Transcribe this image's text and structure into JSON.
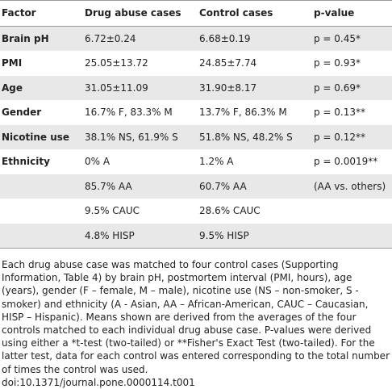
{
  "table": {
    "header": [
      "Factor",
      "Drug abuse cases",
      "Control cases",
      "p-value"
    ],
    "rows": [
      [
        "Brain pH",
        "6.72±0.24",
        "6.68±0.19",
        "p = 0.45*"
      ],
      [
        "PMI",
        "25.05±13.72",
        "24.85±7.74",
        "p = 0.93*"
      ],
      [
        "Age",
        "31.05±11.09",
        "31.90±8.17",
        "p = 0.69*"
      ],
      [
        "Gender",
        "16.7% F, 83.3% M",
        "13.7% F, 86.3% M",
        "p = 0.13**"
      ],
      [
        "Nicotine use",
        "38.1% NS, 61.9% S",
        "51.8% NS, 48.2% S",
        "p = 0.12**"
      ],
      [
        "Ethnicity",
        "0% A",
        "1.2% A",
        "p = 0.0019**"
      ],
      [
        null,
        "85.7% AA",
        "60.7% AA",
        "(AA vs. others)"
      ],
      [
        null,
        "9.5% CAUC",
        "28.6% CAUC",
        null
      ],
      [
        null,
        "4.8% HISP",
        "9.5% HISP",
        null
      ]
    ]
  },
  "footnote": "Each drug abuse case was matched to four control cases (Supporting Information, Table 4) by brain pH, postmortem interval (PMI, hours), age (years), gender (F – female, M – male), nicotine use (NS – non-smoker, S - smoker) and ethnicity (A - Asian, AA – African-American, CAUC – Caucasian, HISP – Hispanic). Means shown are derived from the averages of the four controls matched to each individual drug abuse case. P-values were derived using either a *t-test (two-tailed) or **Fisher's Exact Test (two-tailed). For the latter test, data for each control was entered corresponding to the total number of times the control was used.",
  "doi": "doi:10.1371/journal.pone.0000114.t001"
}
